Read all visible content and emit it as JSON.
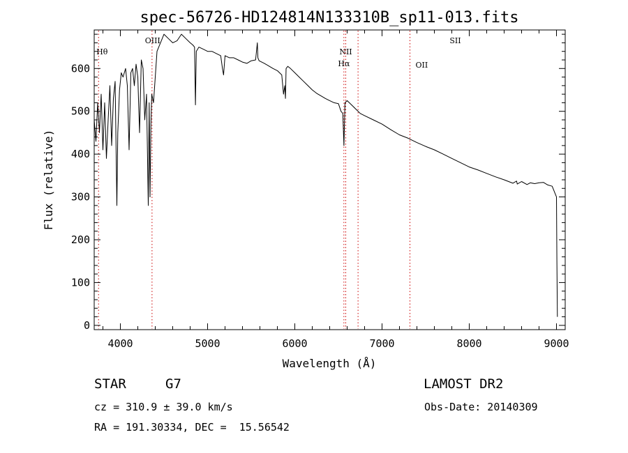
{
  "chart_data": {
    "type": "line",
    "title": "spec-56726-HD124814N133310B_sp11-013.fits",
    "xlabel": "Wavelength (Å)",
    "ylabel": "Flux (relative)",
    "xlim": [
      3700,
      9100
    ],
    "ylim": [
      -10,
      690
    ],
    "x_ticks": [
      4000,
      5000,
      6000,
      7000,
      8000,
      9000
    ],
    "y_ticks": [
      0,
      100,
      200,
      300,
      400,
      500,
      600
    ],
    "grid": false,
    "series": [
      {
        "x": [
          3700,
          3720,
          3740,
          3760,
          3780,
          3800,
          3820,
          3840,
          3860,
          3880,
          3900,
          3920,
          3940,
          3960,
          3970,
          3990,
          4010,
          4030,
          4060,
          4080,
          4100,
          4120,
          4140,
          4160,
          4180,
          4200,
          4220,
          4240,
          4260,
          4280,
          4300,
          4320,
          4330,
          4340,
          4350,
          4360,
          4380,
          4400,
          4420,
          4440,
          4460,
          4480,
          4500,
          4550,
          4600,
          4650,
          4700,
          4750,
          4800,
          4830,
          4850,
          4861,
          4870,
          4900,
          4950,
          5000,
          5050,
          5100,
          5150,
          5170,
          5183,
          5200,
          5250,
          5300,
          5350,
          5400,
          5450,
          5500,
          5550,
          5570,
          5577,
          5590,
          5650,
          5700,
          5750,
          5800,
          5850,
          5870,
          5885,
          5893,
          5900,
          5920,
          5950,
          6000,
          6050,
          6100,
          6150,
          6200,
          6250,
          6300,
          6350,
          6400,
          6450,
          6500,
          6530,
          6550,
          6563,
          6575,
          6600,
          6650,
          6700,
          6750,
          6800,
          6900,
          7000,
          7100,
          7200,
          7300,
          7400,
          7500,
          7600,
          7700,
          7800,
          7900,
          8000,
          8100,
          8200,
          8300,
          8400,
          8500,
          8542,
          8550,
          8600,
          8662,
          8700,
          8750,
          8800,
          8850,
          8900,
          8950,
          9000,
          9005,
          9010
        ],
        "y": [
          480,
          430,
          520,
          450,
          540,
          410,
          520,
          390,
          480,
          560,
          420,
          530,
          570,
          280,
          450,
          550,
          590,
          580,
          600,
          560,
          410,
          590,
          600,
          560,
          610,
          580,
          450,
          620,
          600,
          480,
          540,
          280,
          520,
          300,
          470,
          540,
          520,
          580,
          640,
          650,
          660,
          670,
          680,
          670,
          660,
          665,
          680,
          670,
          660,
          655,
          650,
          515,
          640,
          650,
          645,
          640,
          640,
          635,
          630,
          600,
          585,
          630,
          625,
          625,
          620,
          615,
          612,
          618,
          620,
          660,
          625,
          618,
          612,
          606,
          600,
          595,
          585,
          540,
          560,
          530,
          600,
          605,
          600,
          590,
          580,
          570,
          560,
          550,
          542,
          536,
          530,
          525,
          520,
          518,
          500,
          495,
          420,
          520,
          525,
          515,
          505,
          495,
          490,
          480,
          470,
          457,
          445,
          437,
          427,
          418,
          410,
          400,
          390,
          380,
          370,
          363,
          355,
          347,
          340,
          332,
          337,
          330,
          336,
          329,
          333,
          331,
          333,
          334,
          328,
          325,
          300,
          150,
          20
        ],
        "color": "#000000"
      }
    ],
    "markers": [
      {
        "label": "Hθ",
        "x": 3750,
        "text_x": 3790
      },
      {
        "label": "OIII",
        "x": 4363,
        "text_x": 4370
      },
      {
        "label": "NII",
        "x": 6584,
        "text_x": 6584
      },
      {
        "label": "Hα",
        "x": 6563,
        "text_x": 6563
      },
      {
        "label": "OII",
        "x": 7320,
        "text_x": 7455
      },
      {
        "label": "SII",
        "x": 6725,
        "text_x": 7840
      }
    ],
    "marker_color": "#cc0000"
  },
  "info": {
    "object_type": "STAR",
    "subclass": "G7",
    "survey": "LAMOST DR2",
    "redshift": "cz = 310.9 ± 39.0 km/s",
    "obs_date": "Obs-Date: 20140309",
    "coords": "RA = 191.30334, DEC =  15.56542"
  }
}
